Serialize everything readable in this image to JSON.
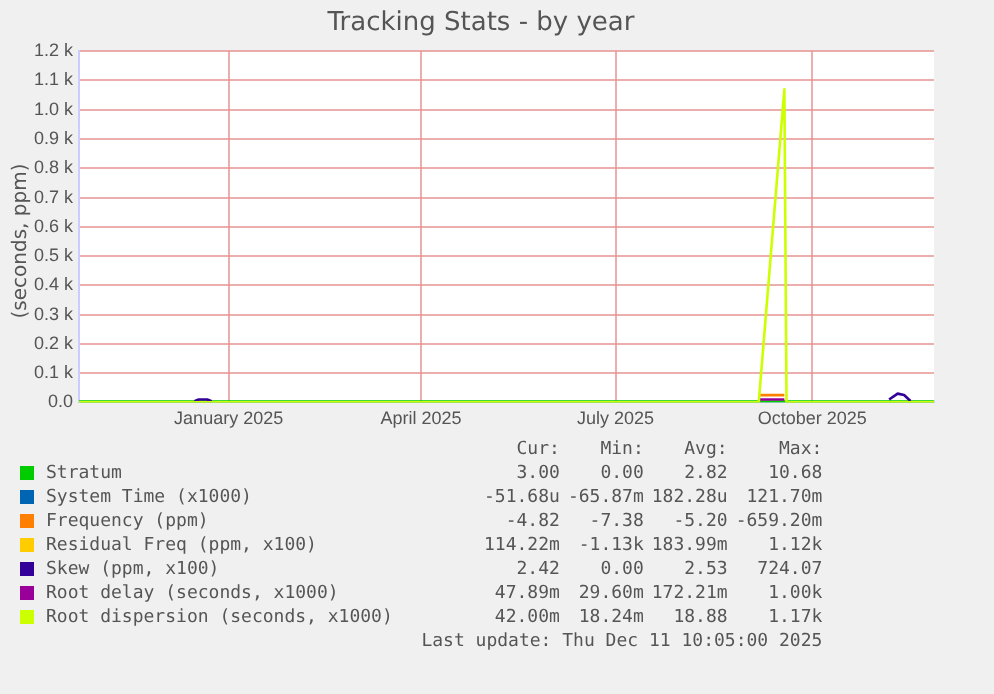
{
  "chart_data": {
    "type": "line",
    "title": "Tracking Stats - by year",
    "ylabel": "(seconds, ppm)",
    "xlim": [
      "2024-11-06",
      "2025-12-11"
    ],
    "xticks": [
      {
        "value": "2025-01-15",
        "label": "January 2025"
      },
      {
        "value": "2025-04-15",
        "label": "April 2025"
      },
      {
        "value": "2025-07-15",
        "label": "July 2025"
      },
      {
        "value": "2025-10-15",
        "label": "October 2025"
      }
    ],
    "ylim": [
      0,
      1200
    ],
    "yticks": [
      {
        "value": 0,
        "label": "0.0"
      },
      {
        "value": 100,
        "label": "0.1 k"
      },
      {
        "value": 200,
        "label": "0.2 k"
      },
      {
        "value": 300,
        "label": "0.3 k"
      },
      {
        "value": 400,
        "label": "0.4 k"
      },
      {
        "value": 500,
        "label": "0.5 k"
      },
      {
        "value": 600,
        "label": "0.6 k"
      },
      {
        "value": 700,
        "label": "0.7 k"
      },
      {
        "value": 800,
        "label": "0.8 k"
      },
      {
        "value": 900,
        "label": "0.9 k"
      },
      {
        "value": 1000,
        "label": "1.0 k"
      },
      {
        "value": 1100,
        "label": "1.1 k"
      },
      {
        "value": 1200,
        "label": "1.2 k"
      }
    ],
    "grid": true,
    "legend": "bottom",
    "marker": "none",
    "series": [
      {
        "name": "Stratum",
        "color": "#00cc00",
        "x": [
          "2024-11-06",
          "2025-12-11"
        ],
        "values": [
          3,
          3
        ]
      },
      {
        "name": "System Time (x1000)",
        "color": "#0066b3"
      },
      {
        "name": "Frequency (ppm)",
        "color": "#ff8000",
        "x": [
          "2025-09-20",
          "2025-10-02"
        ],
        "values": [
          25,
          25
        ]
      },
      {
        "name": "Residual Freq (ppm, x100)",
        "color": "#ffcc00"
      },
      {
        "name": "Skew (ppm, x100)",
        "color": "#330099",
        "x": [
          "2024-12-30",
          "2025-01-01",
          "2025-01-05",
          "2025-01-07",
          null,
          "2025-11-20",
          "2025-11-24",
          "2025-11-27",
          "2025-11-30"
        ],
        "values": [
          4,
          10,
          10,
          4,
          null,
          10,
          30,
          25,
          5
        ]
      },
      {
        "name": "Root delay (seconds, x1000)",
        "color": "#990099",
        "x": [
          "2025-09-20",
          "2025-10-02"
        ],
        "values": [
          10,
          10
        ]
      },
      {
        "name": "Root dispersion (seconds, x1000)",
        "color": "#ccff00",
        "x": [
          "2024-11-06",
          "2025-09-20",
          "2025-10-02",
          "2025-10-03",
          "2025-12-11"
        ],
        "values": [
          0,
          0,
          1070,
          0,
          0
        ]
      }
    ],
    "annotations": [
      "Cur: Min: Avg: Max:",
      "3.00 0.00 2.82 10.68",
      "-51.68u -65.87m 182.28u 121.70m",
      "-4.82 -7.38 -5.20 -659.20m",
      "114.22m -1.13k 183.99m 1.12k",
      "2.42 0.00 2.53 724.07",
      "47.89m 29.60m 172.21m 1.00k",
      "42.00m 18.24m 18.88 1.17k",
      "Last update: Thu Dec 11 10:05:00 2025"
    ]
  }
}
